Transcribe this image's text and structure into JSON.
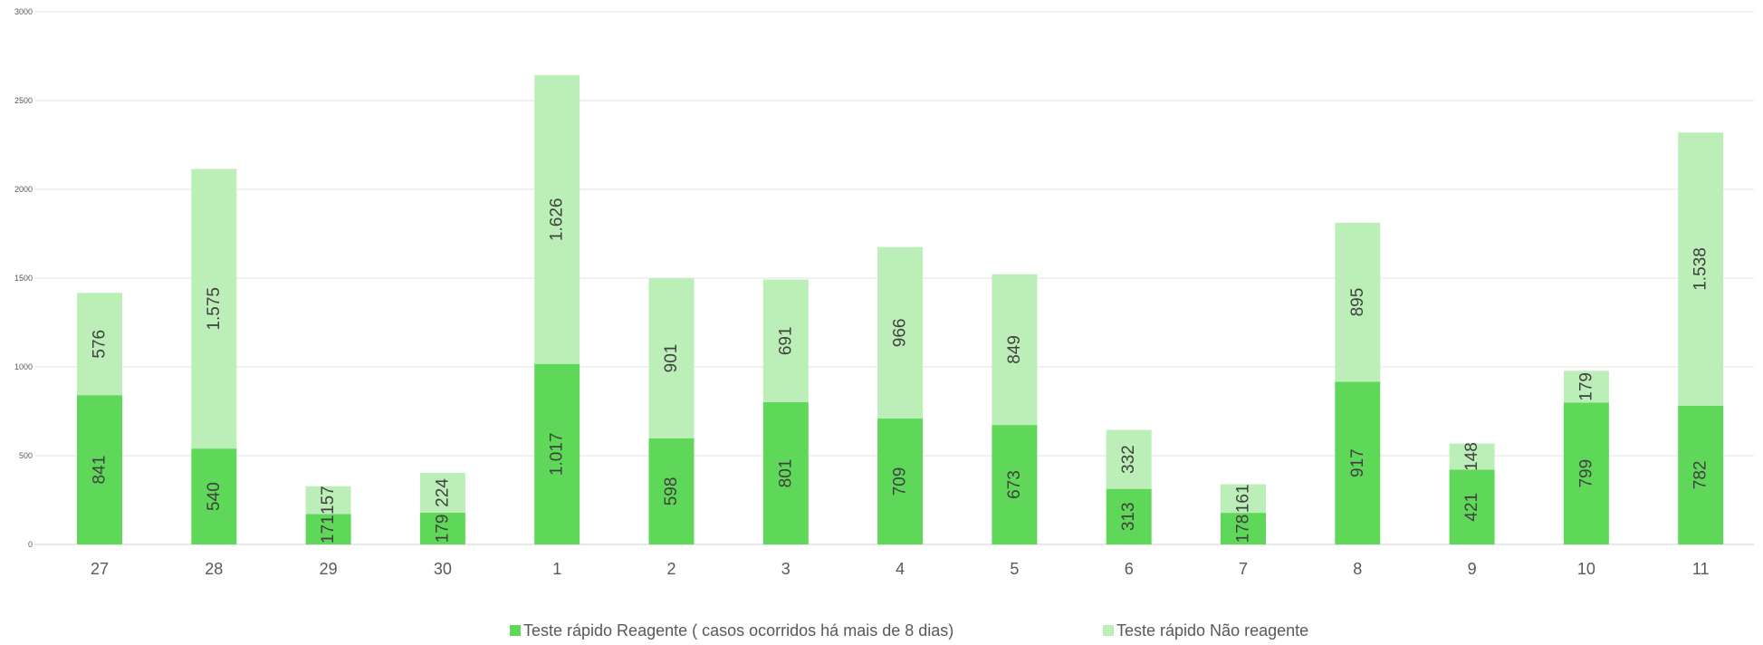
{
  "chart_data": {
    "type": "bar",
    "stacked": true,
    "categories": [
      "27",
      "28",
      "29",
      "30",
      "1",
      "2",
      "3",
      "4",
      "5",
      "6",
      "7",
      "8",
      "9",
      "10",
      "11"
    ],
    "series": [
      {
        "name": "Teste rápido Reagente ( casos ocorridos há mais de 8 dias)",
        "color": "#5fd85a",
        "values": [
          841,
          540,
          171,
          179,
          1017,
          598,
          801,
          709,
          673,
          313,
          178,
          917,
          421,
          799,
          782
        ],
        "labels": [
          "841",
          "540",
          "171",
          "179",
          "1.017",
          "598",
          "801",
          "709",
          "673",
          "313",
          "178",
          "917",
          "421",
          "799",
          "782"
        ]
      },
      {
        "name": "Teste rápido Não reagente",
        "color": "#bcefb7",
        "values": [
          576,
          1575,
          157,
          224,
          1626,
          901,
          691,
          966,
          849,
          332,
          161,
          895,
          148,
          179,
          1538
        ],
        "labels": [
          "576",
          "1.575",
          "157",
          "224",
          "1.626",
          "901",
          "691",
          "966",
          "849",
          "332",
          "161",
          "895",
          "148",
          "179",
          "1.538"
        ]
      }
    ],
    "yticks": [
      "0",
      "500",
      "1000",
      "1500",
      "2000",
      "2500",
      "3000"
    ],
    "ylim": [
      0,
      3000
    ],
    "grid": true,
    "legend_position": "bottom"
  }
}
